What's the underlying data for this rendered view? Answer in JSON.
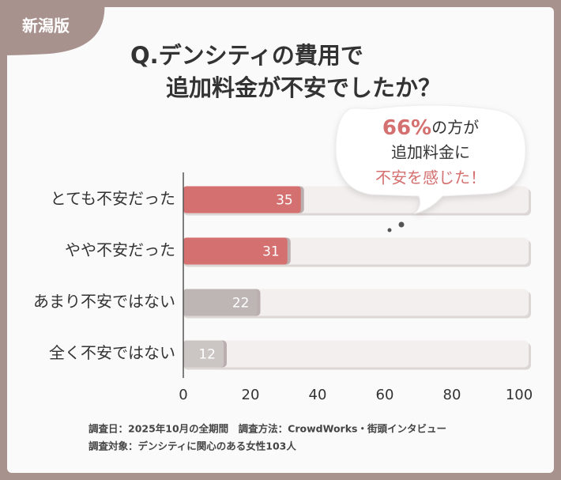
{
  "chart_data": {
    "type": "hbar",
    "badge": "新潟版",
    "title": [
      "Q.デンシティの費用で",
      "追加料金が不安でしたか？"
    ],
    "annotation": {
      "highlight": "66%",
      "line1": "の方が",
      "line2": "追加料金に",
      "line3": "不安を感じた！",
      "highlight_color": "#d4706f"
    },
    "categories": [
      "とても不安だった",
      "やや不安だった",
      "あまり不安ではない",
      "全く不安ではない"
    ],
    "values": [
      35,
      31,
      22,
      12
    ],
    "colors": [
      "#d4706f",
      "#d4706f",
      "#bdb6b4",
      "#cbc6c4"
    ],
    "xlim": [
      0,
      100
    ],
    "xticks": [
      0,
      20,
      40,
      60,
      80,
      100
    ],
    "notes": [
      "調査日：2025年10月の全期間　調査方法：CrowdWorks・街頭インタビュー",
      "調査対象：デンシティに関心のある女性103人"
    ]
  }
}
